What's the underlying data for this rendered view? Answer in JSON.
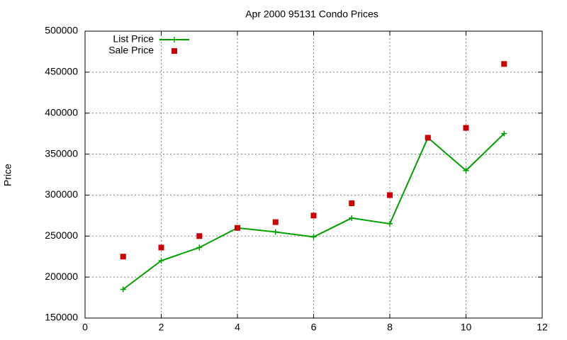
{
  "chart_data": {
    "type": "line",
    "title": "Apr 2000 95131 Condo Prices",
    "y_label": "Price",
    "xlim": [
      0,
      12
    ],
    "xticks": [
      0,
      2,
      4,
      6,
      8,
      10,
      12
    ],
    "ylim": [
      150000,
      500000
    ],
    "yticks": [
      150000,
      200000,
      250000,
      300000,
      350000,
      400000,
      450000,
      500000
    ],
    "grid": true,
    "legend": "top-left",
    "x": [
      1,
      2,
      3,
      4,
      5,
      6,
      7,
      8,
      9,
      10,
      11
    ],
    "series": [
      {
        "name": "List Price",
        "color": "#00a000",
        "style": "linespoints",
        "values": [
          185000,
          220000,
          236000,
          260000,
          255000,
          249000,
          272000,
          265000,
          370000,
          330000,
          375000
        ]
      },
      {
        "name": "Sale Price",
        "color": "#cc0000",
        "style": "points",
        "values": [
          225000,
          236000,
          250000,
          260000,
          267000,
          275000,
          290000,
          300000,
          370000,
          382000,
          460000
        ]
      }
    ]
  }
}
